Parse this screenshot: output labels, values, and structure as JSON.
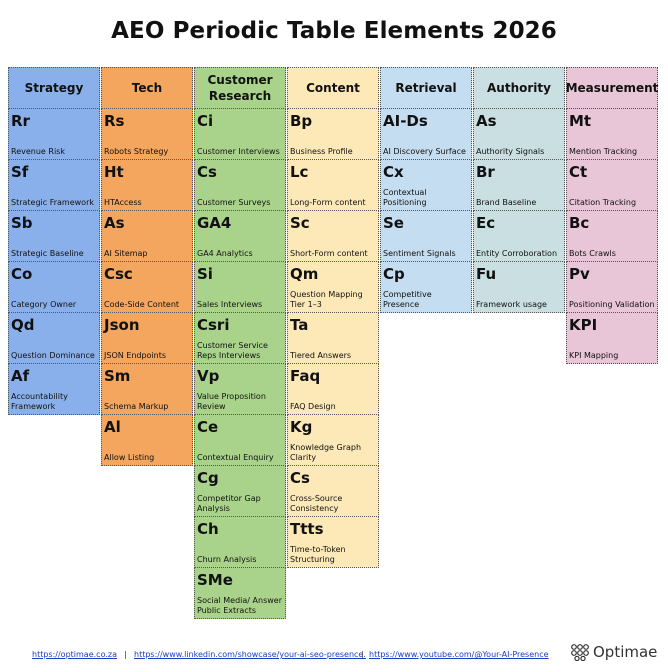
{
  "title": "AEO Periodic Table Elements 2026",
  "colors": {
    "strategy": "#8ab0ec",
    "tech": "#f4a55e",
    "customer_research": "#a9d38a",
    "content": "#fde9b8",
    "retrieval": "#c5ddf0",
    "authority": "#c9dfe2",
    "measurement": "#e8c5d7"
  },
  "columns": [
    {
      "header": "Strategy",
      "cells": [
        {
          "sym": "Rr",
          "name": "Revenue Risk"
        },
        {
          "sym": "Sf",
          "name": "Strategic Framework"
        },
        {
          "sym": "Sb",
          "name": "Strategic Baseline"
        },
        {
          "sym": "Co",
          "name": "Category Owner"
        },
        {
          "sym": "Qd",
          "name": "Question Dominance"
        },
        {
          "sym": "Af",
          "name": "Accountability Framework"
        }
      ]
    },
    {
      "header": "Tech",
      "cells": [
        {
          "sym": "Rs",
          "name": "Robots Strategy"
        },
        {
          "sym": "Ht",
          "name": "HTAccess"
        },
        {
          "sym": "As",
          "name": "AI Sitemap"
        },
        {
          "sym": "Csc",
          "name": "Code-Side Content"
        },
        {
          "sym": "Json",
          "name": "JSON Endpoints"
        },
        {
          "sym": "Sm",
          "name": "Schema Markup"
        },
        {
          "sym": "Al",
          "name": "Allow Listing"
        }
      ]
    },
    {
      "header": "Customer Research",
      "cells": [
        {
          "sym": "Ci",
          "name": "Customer Interviews"
        },
        {
          "sym": "Cs",
          "name": "Customer Surveys"
        },
        {
          "sym": "GA4",
          "name": "GA4 Analytics"
        },
        {
          "sym": "Si",
          "name": "Sales Interviews"
        },
        {
          "sym": "Csri",
          "name": "Customer Service Reps Interviews"
        },
        {
          "sym": "Vp",
          "name": "Value Proposition Review"
        },
        {
          "sym": "Ce",
          "name": "Contextual Enquiry"
        },
        {
          "sym": "Cg",
          "name": "Competitor Gap Analysis"
        },
        {
          "sym": "Ch",
          "name": "Churn Analysis"
        },
        {
          "sym": "SMe",
          "name": "Social Media/ Answer Public Extracts"
        }
      ]
    },
    {
      "header": "Content",
      "cells": [
        {
          "sym": "Bp",
          "name": "Business Profile"
        },
        {
          "sym": "Lc",
          "name": "Long-Form content"
        },
        {
          "sym": "Sc",
          "name": "Short-Form content"
        },
        {
          "sym": "Qm",
          "name": "Question Mapping Tier 1–3"
        },
        {
          "sym": "Ta",
          "name": "Tiered Answers"
        },
        {
          "sym": "Faq",
          "name": "FAQ Design"
        },
        {
          "sym": "Kg",
          "name": "Knowledge Graph Clarity"
        },
        {
          "sym": "Cs",
          "name": "Cross-Source Consistency"
        },
        {
          "sym": "Ttts",
          "name": "Time-to-Token Structuring"
        }
      ]
    },
    {
      "header": "Retrieval",
      "cells": [
        {
          "sym": "AI-Ds",
          "name": "AI Discovery Surface"
        },
        {
          "sym": "Cx",
          "name": "Contextual Positioning"
        },
        {
          "sym": "Se",
          "name": "Sentiment Signals"
        },
        {
          "sym": "Cp",
          "name": "Competitive Presence"
        }
      ]
    },
    {
      "header": "Authority",
      "cells": [
        {
          "sym": "As",
          "name": "Authority Signals"
        },
        {
          "sym": "Br",
          "name": "Brand Baseline"
        },
        {
          "sym": "Ec",
          "name": "Entity Corroboration"
        },
        {
          "sym": "Fu",
          "name": "Framework usage"
        }
      ]
    },
    {
      "header": "Measurement",
      "cells": [
        {
          "sym": "Mt",
          "name": "Mention Tracking"
        },
        {
          "sym": "Ct",
          "name": "Citation Tracking"
        },
        {
          "sym": "Bc",
          "name": "Bots Crawls"
        },
        {
          "sym": "Pv",
          "name": "Positioning Validation"
        },
        {
          "sym": "KPI",
          "name": "KPI Mapping"
        }
      ]
    }
  ],
  "footer": {
    "links": [
      "https://optimae.co.za",
      "https://www.linkedin.com/showcase/your-ai-seo-presence.",
      "https://www.youtube.com/@Your-AI-Presence"
    ],
    "separator": "|",
    "logo_text": "Optimae",
    "logo_icon": "optimae-logo-icon"
  }
}
